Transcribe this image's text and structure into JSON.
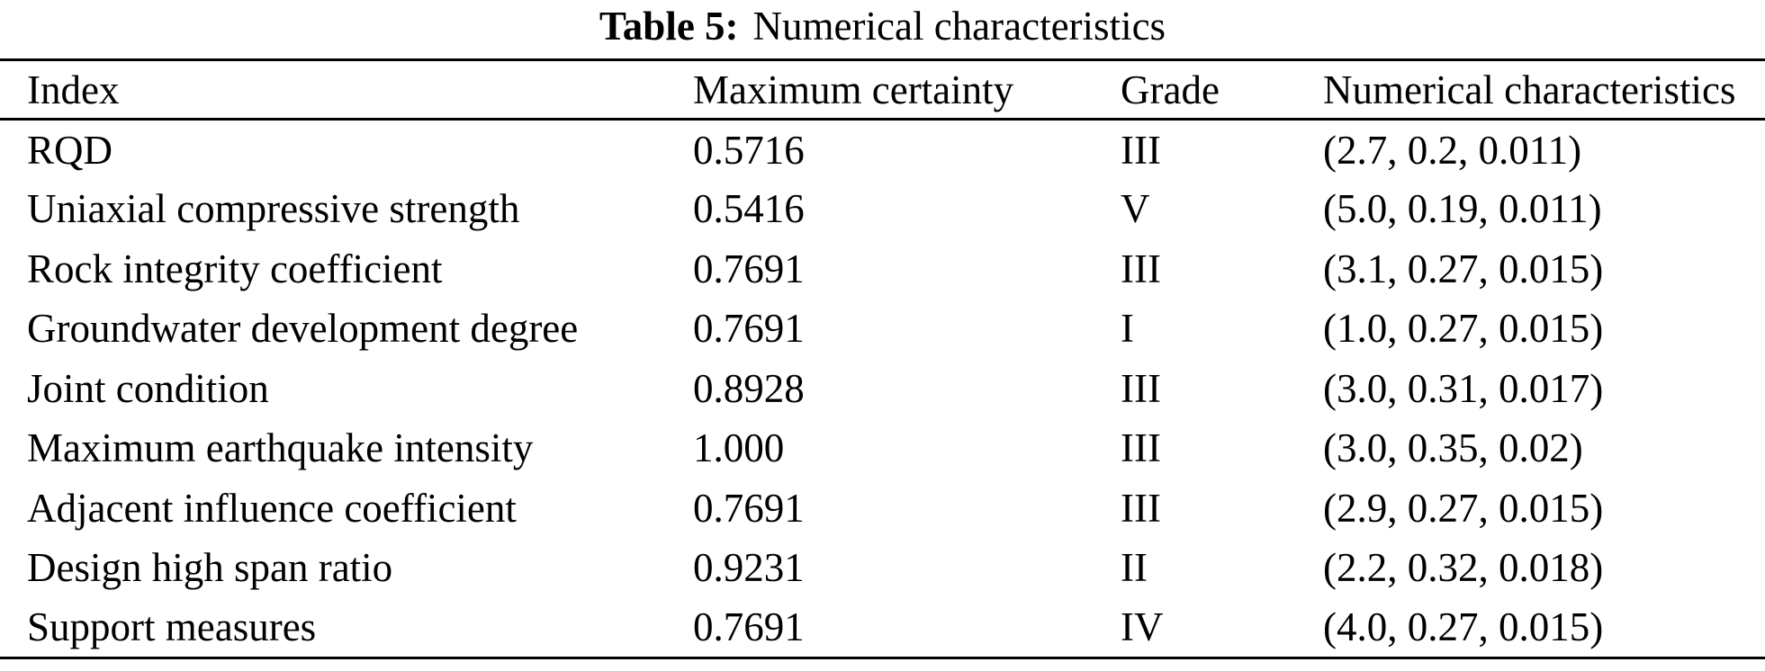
{
  "caption": {
    "label": "Table 5:",
    "text": "Numerical characteristics"
  },
  "table": {
    "columns": [
      "Index",
      "Maximum certainty",
      "Grade",
      "Numerical characteristics"
    ],
    "rows": [
      {
        "index": "RQD",
        "max_certainty": "0.5716",
        "grade": "III",
        "characteristics": "(2.7, 0.2, 0.011)"
      },
      {
        "index": "Uniaxial compressive strength",
        "max_certainty": "0.5416",
        "grade": "V",
        "characteristics": "(5.0, 0.19, 0.011)"
      },
      {
        "index": "Rock integrity coefficient",
        "max_certainty": "0.7691",
        "grade": "III",
        "characteristics": "(3.1, 0.27, 0.015)"
      },
      {
        "index": "Groundwater development degree",
        "max_certainty": "0.7691",
        "grade": "I",
        "characteristics": "(1.0, 0.27, 0.015)"
      },
      {
        "index": "Joint condition",
        "max_certainty": "0.8928",
        "grade": "III",
        "characteristics": "(3.0, 0.31, 0.017)"
      },
      {
        "index": "Maximum earthquake intensity",
        "max_certainty": "1.000",
        "grade": "III",
        "characteristics": "(3.0, 0.35, 0.02)"
      },
      {
        "index": "Adjacent influence coefficient",
        "max_certainty": "0.7691",
        "grade": "III",
        "characteristics": "(2.9, 0.27, 0.015)"
      },
      {
        "index": "Design high span ratio",
        "max_certainty": "0.9231",
        "grade": "II",
        "characteristics": "(2.2, 0.32, 0.018)"
      },
      {
        "index": "Support measures",
        "max_certainty": "0.7691",
        "grade": "IV",
        "characteristics": "(4.0, 0.27, 0.015)"
      }
    ]
  },
  "colors": {
    "text": "#000000",
    "background": "#ffffff",
    "rule": "#000000"
  }
}
